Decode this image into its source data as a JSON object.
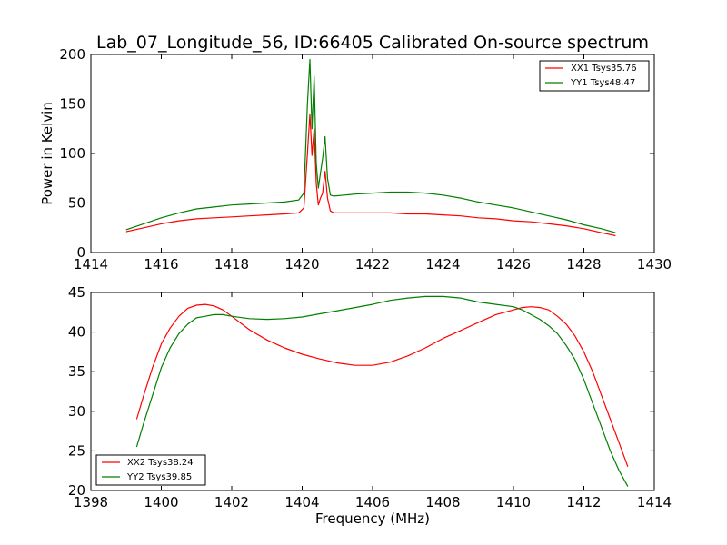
{
  "title": "Lab_07_Longitude_56, ID:66405 Calibrated On-source spectrum",
  "chart_data": [
    {
      "type": "line",
      "xlabel": "",
      "ylabel": "Power in Kelvin",
      "xlim": [
        1414,
        1430
      ],
      "ylim": [
        0,
        200
      ],
      "xticks": [
        1414,
        1416,
        1418,
        1420,
        1422,
        1424,
        1426,
        1428,
        1430
      ],
      "yticks": [
        0,
        50,
        100,
        150,
        200
      ],
      "legend": "top-right",
      "series": [
        {
          "name": "XX1 Tsys35.76",
          "color": "#ff0000",
          "x": [
            1415.0,
            1415.5,
            1416.0,
            1416.5,
            1417.0,
            1417.5,
            1418.0,
            1418.5,
            1419.0,
            1419.5,
            1419.9,
            1420.05,
            1420.15,
            1420.22,
            1420.28,
            1420.34,
            1420.4,
            1420.46,
            1420.52,
            1420.58,
            1420.65,
            1420.72,
            1420.8,
            1420.9,
            1421.2,
            1421.5,
            1422.0,
            1422.5,
            1423.0,
            1423.5,
            1424.0,
            1424.5,
            1425.0,
            1425.5,
            1426.0,
            1426.5,
            1427.0,
            1427.5,
            1428.0,
            1428.5,
            1428.9
          ],
          "y": [
            21,
            25,
            29,
            32,
            34,
            35,
            36,
            37,
            38,
            39,
            40,
            45,
            100,
            140,
            98,
            125,
            70,
            48,
            55,
            60,
            82,
            55,
            42,
            40,
            40,
            40,
            40,
            40,
            39,
            39,
            38,
            37,
            35,
            34,
            32,
            31,
            29,
            27,
            24,
            20,
            17
          ]
        },
        {
          "name": "YY1 Tsys48.47",
          "color": "#008000",
          "x": [
            1415.0,
            1415.5,
            1416.0,
            1416.5,
            1417.0,
            1417.5,
            1418.0,
            1418.5,
            1419.0,
            1419.5,
            1419.9,
            1420.05,
            1420.15,
            1420.22,
            1420.28,
            1420.34,
            1420.4,
            1420.46,
            1420.52,
            1420.58,
            1420.65,
            1420.72,
            1420.8,
            1420.9,
            1421.2,
            1421.5,
            1422.0,
            1422.5,
            1423.0,
            1423.5,
            1424.0,
            1424.5,
            1425.0,
            1425.5,
            1426.0,
            1426.5,
            1427.0,
            1427.5,
            1428.0,
            1428.5,
            1428.9
          ],
          "y": [
            23,
            29,
            35,
            40,
            44,
            46,
            48,
            49,
            50,
            51,
            53,
            60,
            150,
            195,
            125,
            178,
            90,
            65,
            80,
            95,
            117,
            75,
            58,
            57,
            58,
            59,
            60,
            61,
            61,
            60,
            58,
            55,
            51,
            48,
            45,
            41,
            37,
            33,
            28,
            24,
            20
          ]
        }
      ]
    },
    {
      "type": "line",
      "xlabel": "Frequency (MHz)",
      "ylabel": "",
      "xlim": [
        1398,
        1414
      ],
      "ylim": [
        20,
        45
      ],
      "xticks": [
        1398,
        1400,
        1402,
        1404,
        1406,
        1408,
        1410,
        1412,
        1414
      ],
      "yticks": [
        20,
        25,
        30,
        35,
        40,
        45
      ],
      "legend": "bottom-left",
      "series": [
        {
          "name": "XX2 Tsys38.24",
          "color": "#ff0000",
          "x": [
            1399.3,
            1399.5,
            1399.75,
            1400.0,
            1400.25,
            1400.5,
            1400.75,
            1401.0,
            1401.25,
            1401.5,
            1401.75,
            1402.0,
            1402.5,
            1403.0,
            1403.5,
            1404.0,
            1404.5,
            1405.0,
            1405.5,
            1406.0,
            1406.5,
            1407.0,
            1407.5,
            1408.0,
            1408.5,
            1409.0,
            1409.5,
            1410.0,
            1410.25,
            1410.5,
            1410.75,
            1411.0,
            1411.25,
            1411.5,
            1411.75,
            1412.0,
            1412.25,
            1412.5,
            1412.75,
            1413.0,
            1413.25
          ],
          "y": [
            29,
            32,
            35.5,
            38.5,
            40.5,
            42,
            43,
            43.4,
            43.5,
            43.3,
            42.8,
            42,
            40.3,
            39,
            38,
            37.2,
            36.6,
            36.1,
            35.8,
            35.8,
            36.2,
            37,
            38,
            39.2,
            40.2,
            41.2,
            42.2,
            42.8,
            43.1,
            43.2,
            43.1,
            42.8,
            42,
            41,
            39.5,
            37.5,
            35,
            32,
            29,
            26,
            23
          ]
        },
        {
          "name": "YY2 Tsys39.85",
          "color": "#008000",
          "x": [
            1399.3,
            1399.5,
            1399.75,
            1400.0,
            1400.25,
            1400.5,
            1400.75,
            1401.0,
            1401.25,
            1401.5,
            1401.75,
            1402.0,
            1402.5,
            1403.0,
            1403.5,
            1404.0,
            1404.5,
            1405.0,
            1405.5,
            1406.0,
            1406.5,
            1407.0,
            1407.5,
            1408.0,
            1408.5,
            1409.0,
            1409.5,
            1410.0,
            1410.25,
            1410.5,
            1410.75,
            1411.0,
            1411.25,
            1411.5,
            1411.75,
            1412.0,
            1412.25,
            1412.5,
            1412.75,
            1413.0,
            1413.25
          ],
          "y": [
            25.5,
            28.5,
            32,
            35.5,
            38,
            39.8,
            41,
            41.8,
            42,
            42.2,
            42.2,
            42,
            41.7,
            41.6,
            41.7,
            41.9,
            42.3,
            42.7,
            43.1,
            43.5,
            44,
            44.3,
            44.5,
            44.5,
            44.3,
            43.8,
            43.5,
            43.2,
            42.8,
            42.2,
            41.6,
            40.8,
            39.8,
            38.3,
            36.5,
            34,
            31,
            28,
            25,
            22.5,
            20.5
          ]
        }
      ]
    }
  ]
}
